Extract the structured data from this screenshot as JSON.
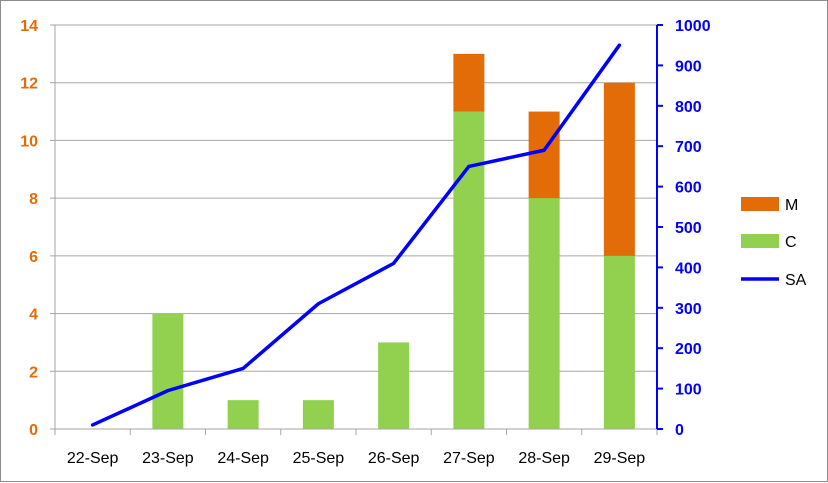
{
  "chart_data": {
    "type": "bar",
    "stacked": true,
    "categories": [
      "22-Sep",
      "23-Sep",
      "24-Sep",
      "25-Sep",
      "26-Sep",
      "27-Sep",
      "28-Sep",
      "29-Sep"
    ],
    "series": [
      {
        "name": "C",
        "type": "bar",
        "axis": "left",
        "color": "#92d050",
        "values": [
          0,
          4,
          1,
          1,
          3,
          11,
          8,
          6
        ]
      },
      {
        "name": "M",
        "type": "bar",
        "axis": "left",
        "color": "#e36c09",
        "values": [
          0,
          0,
          0,
          0,
          0,
          2,
          3,
          6
        ]
      },
      {
        "name": "SA",
        "type": "line",
        "axis": "right",
        "color": "#0000ff",
        "values": [
          10,
          95,
          150,
          310,
          410,
          650,
          690,
          950
        ]
      }
    ],
    "y_left": {
      "min": 0,
      "max": 14,
      "step": 2,
      "color": "#e36c09",
      "ticks": [
        "0",
        "2",
        "4",
        "6",
        "8",
        "10",
        "12",
        "14"
      ]
    },
    "y_right": {
      "min": 0,
      "max": 1000,
      "step": 100,
      "color": "#0000ff",
      "ticks": [
        "0",
        "100",
        "200",
        "300",
        "400",
        "500",
        "600",
        "700",
        "800",
        "900",
        "1000"
      ]
    },
    "legend": {
      "position": "right",
      "entries": [
        "M",
        "C",
        "SA"
      ]
    },
    "grid": {
      "horizontal": true,
      "color": "#a6a6a6"
    },
    "title": "",
    "xlabel": "",
    "ylabel": ""
  }
}
